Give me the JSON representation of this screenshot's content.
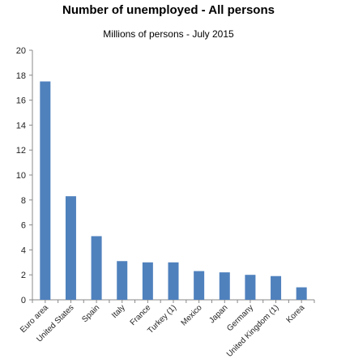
{
  "chart_data": {
    "type": "bar",
    "title": "Number of unemployed - All persons",
    "subtitle": "Millions of persons  - July 2015",
    "categories": [
      "Euro area",
      "United States",
      "Spain",
      "Italy",
      "France",
      "Turkey (1)",
      "Mexico",
      "Japan",
      "Germany",
      "United Kingdom (1)",
      "Korea"
    ],
    "values": [
      17.5,
      8.3,
      5.1,
      3.1,
      3.0,
      3.0,
      2.3,
      2.2,
      2.0,
      1.9,
      1.0
    ],
    "ylim": [
      0,
      20
    ],
    "yticks": [
      0,
      2,
      4,
      6,
      8,
      10,
      12,
      14,
      16,
      18,
      20
    ],
    "grid": false,
    "bar_color": "#4f81bd"
  }
}
